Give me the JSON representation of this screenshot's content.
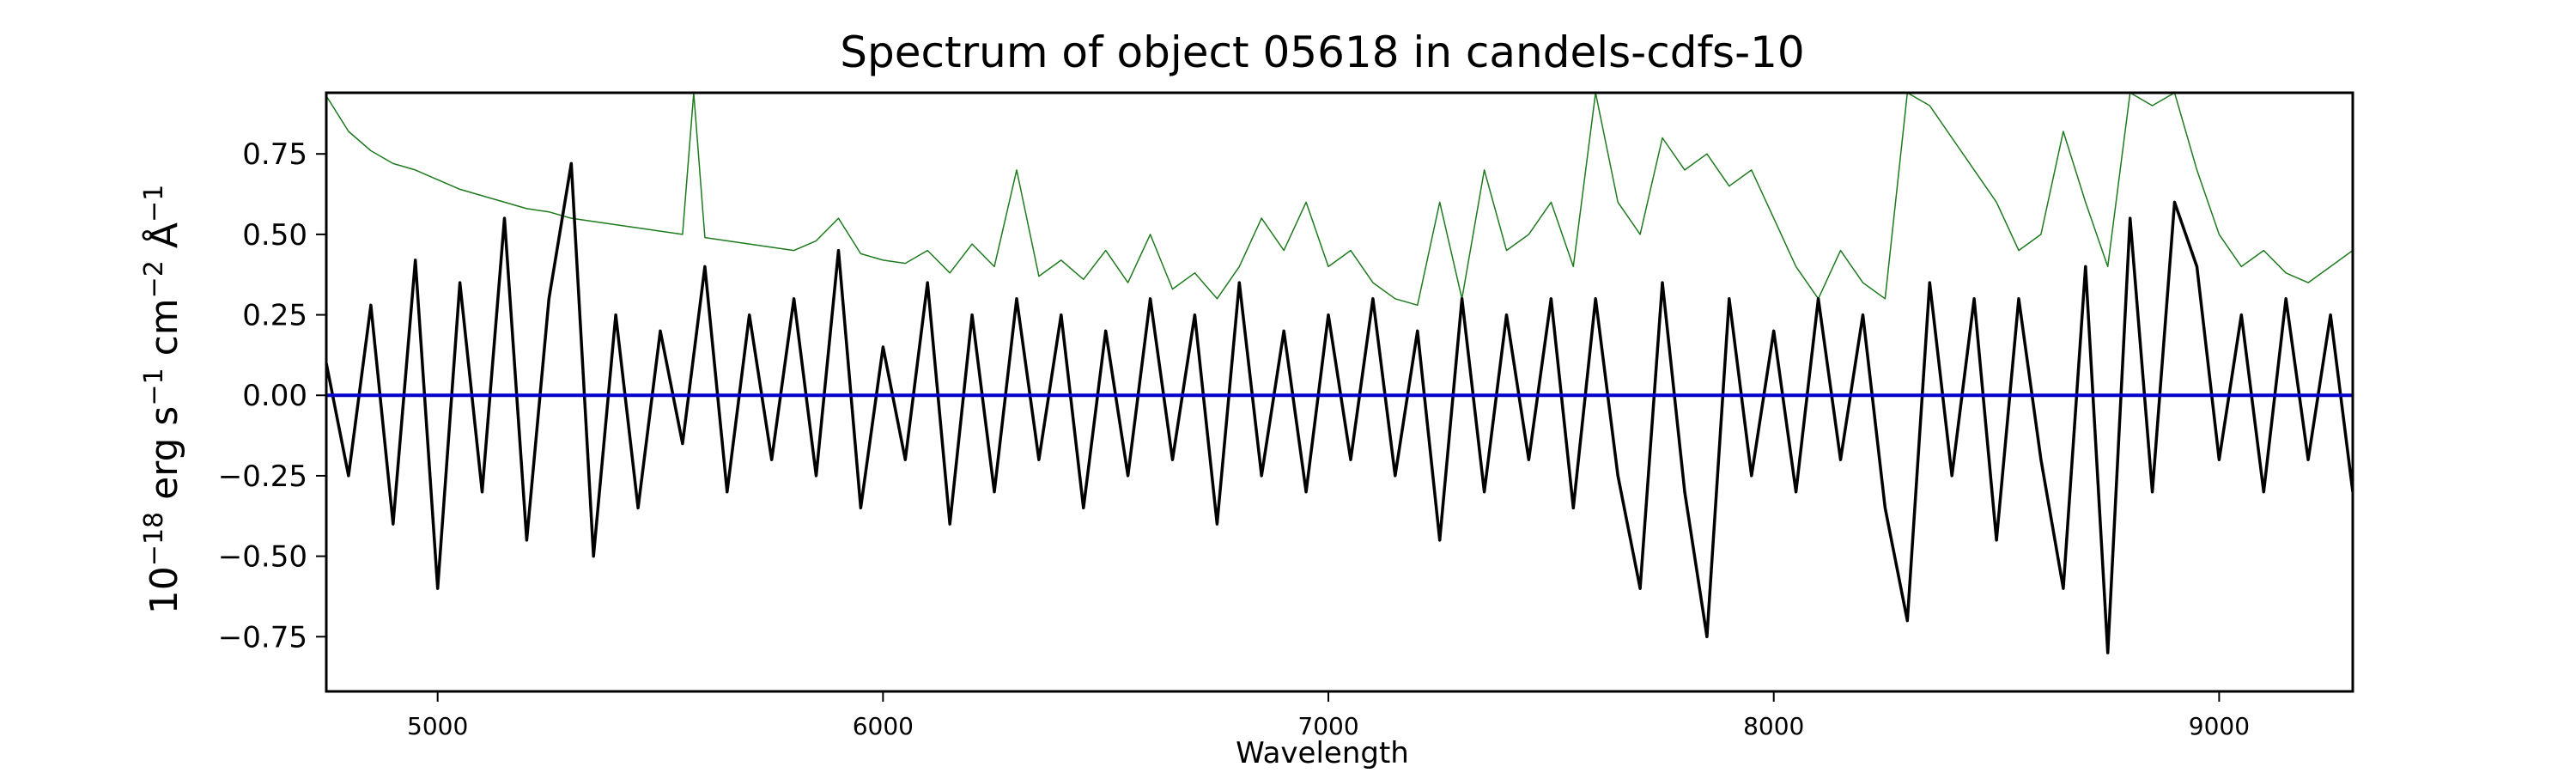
{
  "chart_data": {
    "type": "line",
    "title": "Spectrum of object 05618 in candels-cdfs-10",
    "xlabel": "Wavelength",
    "ylabel_parts": {
      "prefix": "10",
      "exp1": "−18",
      "erg": " erg s",
      "exp2": "−1",
      "cm": " cm",
      "exp3": "−2",
      "ang": " Å",
      "exp4": "−1"
    },
    "xlim": [
      4750,
      9300
    ],
    "ylim": [
      -0.92,
      0.94
    ],
    "xticks": [
      5000,
      6000,
      7000,
      8000,
      9000
    ],
    "xtick_labels": [
      "5000",
      "6000",
      "7000",
      "8000",
      "9000"
    ],
    "yticks": [
      -0.75,
      -0.5,
      -0.25,
      0.0,
      0.25,
      0.5,
      0.75
    ],
    "ytick_labels": [
      "−0.75",
      "−0.50",
      "−0.25",
      "0.00",
      "0.25",
      "0.50",
      "0.75"
    ],
    "grid": false,
    "legend": "none",
    "series": [
      {
        "color": "#000000",
        "x": [
          4750,
          4800,
          4850,
          4900,
          4950,
          5000,
          5050,
          5100,
          5150,
          5200,
          5250,
          5300,
          5350,
          5400,
          5450,
          5500,
          5550,
          5600,
          5650,
          5700,
          5750,
          5800,
          5850,
          5900,
          5950,
          6000,
          6050,
          6100,
          6150,
          6200,
          6250,
          6300,
          6350,
          6400,
          6450,
          6500,
          6550,
          6600,
          6650,
          6700,
          6750,
          6800,
          6850,
          6900,
          6950,
          7000,
          7050,
          7100,
          7150,
          7200,
          7250,
          7300,
          7350,
          7400,
          7450,
          7500,
          7550,
          7600,
          7650,
          7700,
          7750,
          7800,
          7850,
          7900,
          7950,
          8000,
          8050,
          8100,
          8150,
          8200,
          8250,
          8300,
          8350,
          8400,
          8450,
          8500,
          8550,
          8600,
          8650,
          8700,
          8750,
          8800,
          8850,
          8900,
          8950,
          9000,
          9050,
          9100,
          9150,
          9200,
          9250,
          9300
        ],
        "y": [
          0.1,
          -0.25,
          0.28,
          -0.4,
          0.42,
          -0.6,
          0.35,
          -0.3,
          0.55,
          -0.45,
          0.3,
          0.72,
          -0.5,
          0.25,
          -0.35,
          0.2,
          -0.15,
          0.4,
          -0.3,
          0.25,
          -0.2,
          0.3,
          -0.25,
          0.45,
          -0.35,
          0.15,
          -0.2,
          0.35,
          -0.4,
          0.25,
          -0.3,
          0.3,
          -0.2,
          0.25,
          -0.35,
          0.2,
          -0.25,
          0.3,
          -0.2,
          0.25,
          -0.4,
          0.35,
          -0.25,
          0.2,
          -0.3,
          0.25,
          -0.2,
          0.3,
          -0.25,
          0.2,
          -0.45,
          0.3,
          -0.3,
          0.25,
          -0.2,
          0.3,
          -0.35,
          0.3,
          -0.25,
          -0.6,
          0.35,
          -0.3,
          -0.75,
          0.3,
          -0.25,
          0.2,
          -0.3,
          0.3,
          -0.2,
          0.25,
          -0.35,
          -0.7,
          0.35,
          -0.25,
          0.3,
          -0.45,
          0.3,
          -0.2,
          -0.6,
          0.4,
          -0.8,
          0.55,
          -0.3,
          0.6,
          0.4,
          -0.2,
          0.25,
          -0.3,
          0.3,
          -0.2,
          0.25,
          -0.3
        ]
      },
      {
        "color": "#1e7a1e",
        "x": [
          4750,
          4800,
          4850,
          4900,
          4950,
          5000,
          5050,
          5100,
          5150,
          5200,
          5250,
          5300,
          5350,
          5400,
          5450,
          5500,
          5550,
          5575,
          5600,
          5650,
          5700,
          5750,
          5800,
          5850,
          5900,
          5950,
          6000,
          6050,
          6100,
          6150,
          6200,
          6250,
          6300,
          6350,
          6400,
          6450,
          6500,
          6550,
          6600,
          6650,
          6700,
          6750,
          6800,
          6850,
          6900,
          6950,
          7000,
          7050,
          7100,
          7150,
          7200,
          7250,
          7300,
          7350,
          7400,
          7450,
          7500,
          7550,
          7600,
          7650,
          7700,
          7750,
          7800,
          7850,
          7900,
          7950,
          8000,
          8050,
          8100,
          8150,
          8200,
          8250,
          8300,
          8350,
          8400,
          8450,
          8500,
          8550,
          8600,
          8650,
          8700,
          8750,
          8800,
          8850,
          8900,
          8950,
          9000,
          9050,
          9100,
          9150,
          9200,
          9250,
          9300
        ],
        "y": [
          0.93,
          0.82,
          0.76,
          0.72,
          0.7,
          0.67,
          0.64,
          0.62,
          0.6,
          0.58,
          0.57,
          0.55,
          0.54,
          0.53,
          0.52,
          0.51,
          0.5,
          0.94,
          0.49,
          0.48,
          0.47,
          0.46,
          0.45,
          0.48,
          0.55,
          0.44,
          0.42,
          0.41,
          0.45,
          0.38,
          0.47,
          0.4,
          0.7,
          0.37,
          0.42,
          0.36,
          0.45,
          0.35,
          0.5,
          0.33,
          0.38,
          0.3,
          0.4,
          0.55,
          0.45,
          0.6,
          0.4,
          0.45,
          0.35,
          0.3,
          0.28,
          0.6,
          0.3,
          0.7,
          0.45,
          0.5,
          0.6,
          0.4,
          0.94,
          0.6,
          0.5,
          0.8,
          0.7,
          0.75,
          0.65,
          0.7,
          0.55,
          0.4,
          0.3,
          0.45,
          0.35,
          0.3,
          0.94,
          0.9,
          0.8,
          0.7,
          0.6,
          0.45,
          0.5,
          0.82,
          0.6,
          0.4,
          0.94,
          0.9,
          0.94,
          0.7,
          0.5,
          0.4,
          0.45,
          0.38,
          0.35,
          0.4,
          0.45
        ]
      },
      {
        "color": "#0000cc",
        "x": [
          4750,
          9300
        ],
        "y": [
          0.0,
          0.0
        ]
      }
    ]
  }
}
